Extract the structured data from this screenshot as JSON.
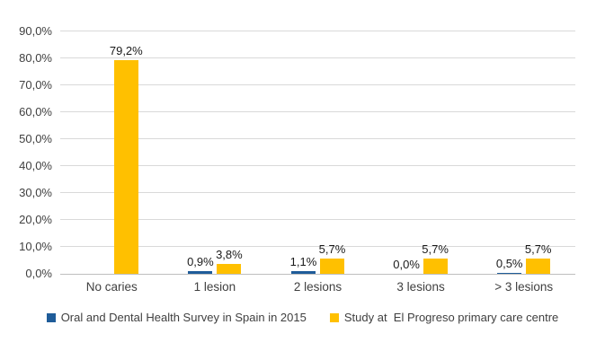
{
  "chart_data": {
    "type": "bar",
    "title": "",
    "categories": [
      "No caries",
      "1 lesion",
      "2 lesions",
      "3 lesions",
      "> 3 lesions"
    ],
    "series": [
      {
        "name": "Oral and Dental Health Survey in Spain in 2015",
        "color": "#1F5C99",
        "values": [
          null,
          0.9,
          1.1,
          0.0,
          0.5
        ],
        "labels": [
          "",
          "0,9%",
          "1,1%",
          "0,0%",
          "0,5%"
        ]
      },
      {
        "name": "Study at  El Progreso primary care centre",
        "color": "#FFC000",
        "values": [
          79.2,
          3.8,
          5.7,
          5.7,
          5.7
        ],
        "labels": [
          "79,2%",
          "3,8%",
          "5,7%",
          "5,7%",
          "5,7%"
        ]
      }
    ],
    "ylim": [
      0,
      90
    ],
    "ytick_step": 10,
    "ytick_labels": [
      "0,0%",
      "10,0%",
      "20,0%",
      "30,0%",
      "40,0%",
      "50,0%",
      "60,0%",
      "70,0%",
      "80,0%",
      "90,0%"
    ],
    "grid": true,
    "legend_position": "bottom",
    "decimal_separator": ",",
    "colors": {
      "gridline": "#D9D9D9",
      "axis_line": "#BFBFBF",
      "tick_text": "#404040",
      "data_label_text": "#1A1A1A",
      "background": "#FFFFFF"
    }
  }
}
